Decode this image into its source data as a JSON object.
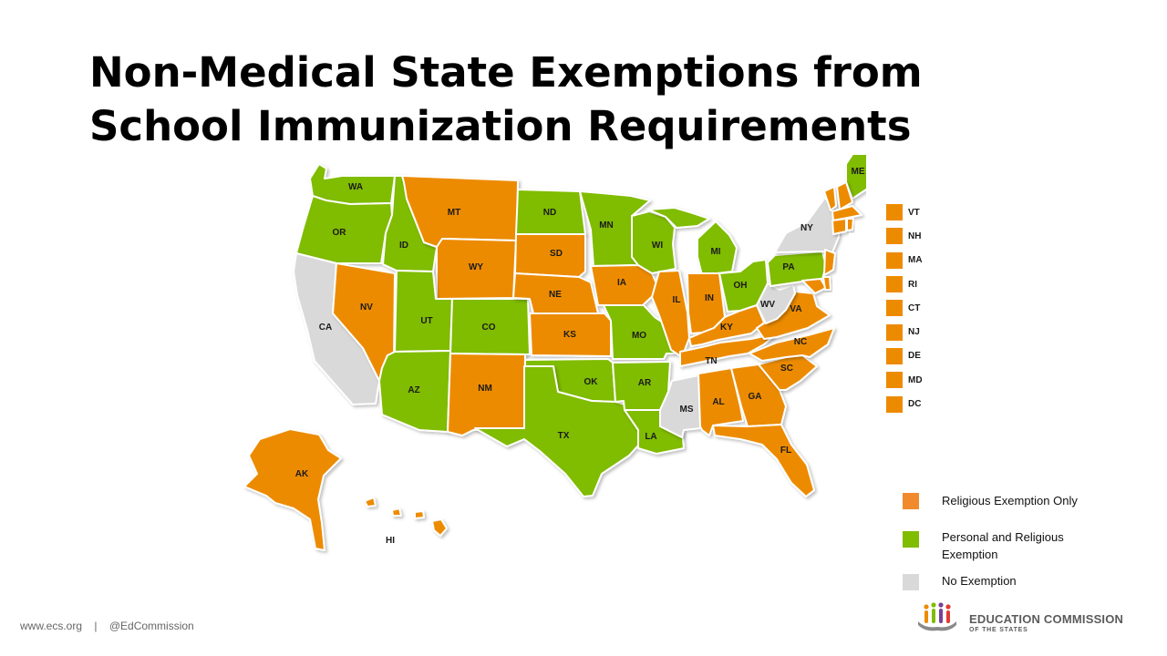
{
  "title": "Non-Medical State Exemptions from School Immunization Requirements",
  "colors": {
    "religious": "#ED8B00",
    "personal": "#80BC00",
    "none": "#D9D9D9",
    "legend_religious": "#F08A2C"
  },
  "states": [
    {
      "code": "WA",
      "cat": "personal"
    },
    {
      "code": "OR",
      "cat": "personal"
    },
    {
      "code": "CA",
      "cat": "none"
    },
    {
      "code": "NV",
      "cat": "religious"
    },
    {
      "code": "ID",
      "cat": "personal"
    },
    {
      "code": "MT",
      "cat": "religious"
    },
    {
      "code": "WY",
      "cat": "religious"
    },
    {
      "code": "UT",
      "cat": "personal"
    },
    {
      "code": "AZ",
      "cat": "personal"
    },
    {
      "code": "CO",
      "cat": "personal"
    },
    {
      "code": "NM",
      "cat": "religious"
    },
    {
      "code": "ND",
      "cat": "personal"
    },
    {
      "code": "SD",
      "cat": "religious"
    },
    {
      "code": "NE",
      "cat": "religious"
    },
    {
      "code": "KS",
      "cat": "religious"
    },
    {
      "code": "OK",
      "cat": "personal"
    },
    {
      "code": "TX",
      "cat": "personal"
    },
    {
      "code": "MN",
      "cat": "personal"
    },
    {
      "code": "IA",
      "cat": "religious"
    },
    {
      "code": "MO",
      "cat": "personal"
    },
    {
      "code": "AR",
      "cat": "personal"
    },
    {
      "code": "LA",
      "cat": "personal"
    },
    {
      "code": "WI",
      "cat": "personal"
    },
    {
      "code": "IL",
      "cat": "religious"
    },
    {
      "code": "MI",
      "cat": "personal"
    },
    {
      "code": "IN",
      "cat": "religious"
    },
    {
      "code": "OH",
      "cat": "personal"
    },
    {
      "code": "KY",
      "cat": "religious"
    },
    {
      "code": "TN",
      "cat": "religious"
    },
    {
      "code": "MS",
      "cat": "none"
    },
    {
      "code": "AL",
      "cat": "religious"
    },
    {
      "code": "GA",
      "cat": "religious"
    },
    {
      "code": "FL",
      "cat": "religious"
    },
    {
      "code": "SC",
      "cat": "religious"
    },
    {
      "code": "NC",
      "cat": "religious"
    },
    {
      "code": "VA",
      "cat": "religious"
    },
    {
      "code": "WV",
      "cat": "none"
    },
    {
      "code": "PA",
      "cat": "personal"
    },
    {
      "code": "NY",
      "cat": "none"
    },
    {
      "code": "ME",
      "cat": "personal"
    },
    {
      "code": "AK",
      "cat": "religious"
    },
    {
      "code": "HI",
      "cat": "religious"
    }
  ],
  "small_states": [
    {
      "code": "VT",
      "cat": "religious"
    },
    {
      "code": "NH",
      "cat": "religious"
    },
    {
      "code": "MA",
      "cat": "religious"
    },
    {
      "code": "RI",
      "cat": "religious"
    },
    {
      "code": "CT",
      "cat": "religious"
    },
    {
      "code": "NJ",
      "cat": "religious"
    },
    {
      "code": "DE",
      "cat": "religious"
    },
    {
      "code": "MD",
      "cat": "religious"
    },
    {
      "code": "DC",
      "cat": "religious"
    }
  ],
  "legend": [
    {
      "label": "Religious Exemption Only",
      "cat": "religious"
    },
    {
      "label": "Personal and Religious Exemption",
      "cat": "personal"
    },
    {
      "label": "No Exemption",
      "cat": "none"
    }
  ],
  "footer": {
    "website": "www.ecs.org",
    "separator": "|",
    "handle": "@EdCommission"
  },
  "logo": {
    "name": "EDUCATION COMMISSION",
    "sub": "OF THE STATES"
  }
}
